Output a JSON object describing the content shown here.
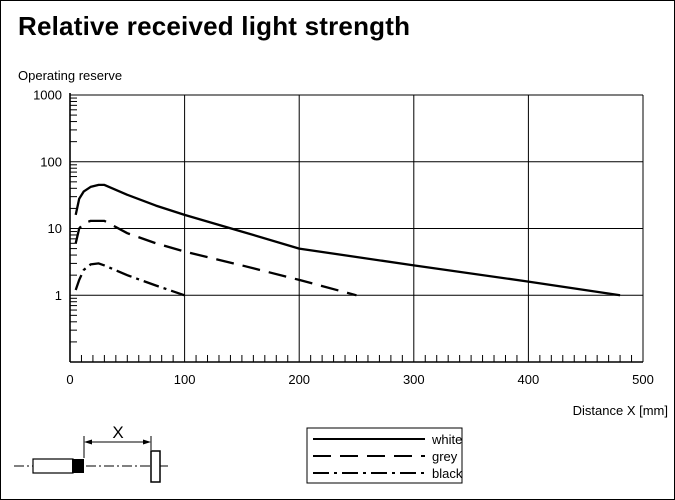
{
  "title": "Relative received light strength",
  "chart_data": {
    "type": "line",
    "title": "Relative received light strength",
    "ylabel": "Operating reserve",
    "xlabel": "Distance X [mm]",
    "xlim": [
      0,
      500
    ],
    "ylim": [
      0.1,
      1000
    ],
    "y_scale": "log",
    "grid": true,
    "x_ticks": [
      0,
      100,
      200,
      300,
      400,
      500
    ],
    "y_ticks": [
      1,
      10,
      100,
      1000
    ],
    "x_tick_labels": [
      "0",
      "100",
      "200",
      "300",
      "400",
      "500"
    ],
    "y_tick_labels": [
      "1",
      "10",
      "100",
      "1000"
    ],
    "legend_placement": "bottom-center",
    "series": [
      {
        "name": "white",
        "style": "solid",
        "x": [
          5,
          8,
          12,
          18,
          25,
          30,
          50,
          75,
          100,
          150,
          200,
          300,
          400,
          480
        ],
        "y": [
          16,
          28,
          36,
          42,
          45,
          45,
          32,
          22,
          16,
          9,
          5,
          2.8,
          1.6,
          1.0
        ]
      },
      {
        "name": "grey",
        "style": "dashed",
        "x": [
          5,
          8,
          12,
          18,
          25,
          30,
          50,
          75,
          100,
          150,
          200,
          250
        ],
        "y": [
          6,
          10,
          12,
          13,
          13,
          13,
          8.5,
          6,
          4.5,
          2.8,
          1.7,
          1.0
        ]
      },
      {
        "name": "black",
        "style": "dashdot",
        "x": [
          5,
          8,
          12,
          18,
          25,
          30,
          50,
          75,
          100
        ],
        "y": [
          1.2,
          1.7,
          2.4,
          2.9,
          3.0,
          2.8,
          2.0,
          1.4,
          1.0
        ]
      }
    ]
  },
  "diagram": {
    "distance_label": "X"
  }
}
